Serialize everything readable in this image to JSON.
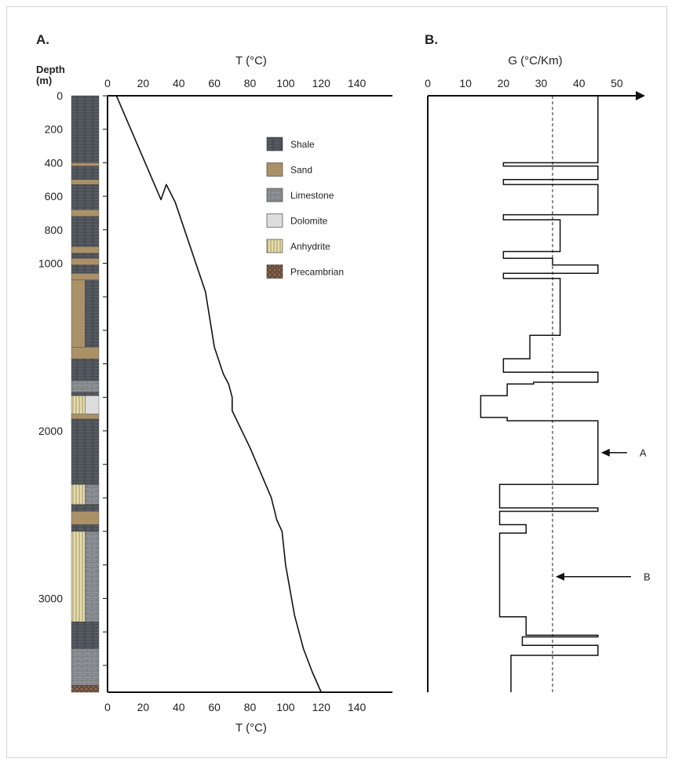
{
  "chart_data": [
    {
      "panel_label": "A.",
      "type": "line",
      "title": "",
      "xlabel_top": "T (°C)",
      "xlabel_bottom": "T (°C)",
      "ylabel": "Depth\n(m)",
      "xlim": [
        0,
        160
      ],
      "ylim": [
        3560,
        0
      ],
      "xticks": [
        0,
        20,
        40,
        60,
        80,
        100,
        120,
        140
      ],
      "yticks": [
        0,
        200,
        400,
        600,
        800,
        1000,
        2000,
        3000
      ],
      "yticks_minor": [
        1200,
        1400,
        1600,
        1800,
        2200,
        2400,
        2600,
        2800,
        3200,
        3400
      ],
      "series": [
        {
          "points": [
            [
              5,
              0
            ],
            [
              30,
              620
            ],
            [
              33,
              530
            ],
            [
              38,
              635
            ],
            [
              55,
              1170
            ],
            [
              60,
              1500
            ],
            [
              65,
              1660
            ],
            [
              68,
              1720
            ],
            [
              70,
              1800
            ],
            [
              70,
              1880
            ],
            [
              80,
              2100
            ],
            [
              92,
              2400
            ],
            [
              95,
              2530
            ],
            [
              98,
              2600
            ],
            [
              100,
              2800
            ],
            [
              105,
              3100
            ],
            [
              110,
              3300
            ],
            [
              115,
              3440
            ],
            [
              120,
              3560
            ]
          ]
        }
      ],
      "lithology_column": [
        {
          "top": 0,
          "bottom": 400,
          "units": [
            "Shale"
          ]
        },
        {
          "top": 400,
          "bottom": 420,
          "units": [
            "Sand"
          ]
        },
        {
          "top": 420,
          "bottom": 500,
          "units": [
            "Shale"
          ]
        },
        {
          "top": 500,
          "bottom": 530,
          "units": [
            "Sand"
          ]
        },
        {
          "top": 530,
          "bottom": 680,
          "units": [
            "Shale"
          ]
        },
        {
          "top": 680,
          "bottom": 720,
          "units": [
            "Sand"
          ]
        },
        {
          "top": 720,
          "bottom": 900,
          "units": [
            "Shale"
          ]
        },
        {
          "top": 900,
          "bottom": 940,
          "units": [
            "Sand"
          ]
        },
        {
          "top": 940,
          "bottom": 970,
          "units": [
            "Shale"
          ]
        },
        {
          "top": 970,
          "bottom": 1010,
          "units": [
            "Sand"
          ]
        },
        {
          "top": 1010,
          "bottom": 1060,
          "units": [
            "Shale"
          ]
        },
        {
          "top": 1060,
          "bottom": 1100,
          "units": [
            "Sand"
          ]
        },
        {
          "top": 1100,
          "bottom": 1500,
          "units": [
            "Sand",
            "Shale"
          ]
        },
        {
          "top": 1500,
          "bottom": 1570,
          "units": [
            "Sand"
          ]
        },
        {
          "top": 1570,
          "bottom": 1700,
          "units": [
            "Shale"
          ]
        },
        {
          "top": 1700,
          "bottom": 1770,
          "units": [
            "Limestone"
          ]
        },
        {
          "top": 1770,
          "bottom": 1790,
          "units": [
            "Shale"
          ]
        },
        {
          "top": 1790,
          "bottom": 1900,
          "units": [
            "Anhydrite",
            "Dolomite"
          ]
        },
        {
          "top": 1900,
          "bottom": 1930,
          "units": [
            "Sand"
          ]
        },
        {
          "top": 1930,
          "bottom": 2320,
          "units": [
            "Shale"
          ]
        },
        {
          "top": 2320,
          "bottom": 2440,
          "units": [
            "Anhydrite",
            "Limestone"
          ]
        },
        {
          "top": 2440,
          "bottom": 2480,
          "units": [
            "Shale"
          ]
        },
        {
          "top": 2480,
          "bottom": 2560,
          "units": [
            "Sand"
          ]
        },
        {
          "top": 2560,
          "bottom": 2600,
          "units": [
            "Shale"
          ]
        },
        {
          "top": 2600,
          "bottom": 3140,
          "units": [
            "Anhydrite",
            "Limestone"
          ]
        },
        {
          "top": 3140,
          "bottom": 3300,
          "units": [
            "Shale"
          ]
        },
        {
          "top": 3300,
          "bottom": 3520,
          "units": [
            "Limestone"
          ]
        },
        {
          "top": 3520,
          "bottom": 3560,
          "units": [
            "Precambrian"
          ]
        }
      ],
      "legend": {
        "placement": "upper-right",
        "entries": [
          {
            "name": "Shale",
            "color": "#4b5057"
          },
          {
            "name": "Sand",
            "color": "#ab9168"
          },
          {
            "name": "Limestone",
            "color": "#8f9297"
          },
          {
            "name": "Dolomite",
            "color": "#dcdcdc"
          },
          {
            "name": "Anhydrite",
            "color": "#e6dcae"
          },
          {
            "name": "Precambrian",
            "color": "#6b4e3a"
          }
        ]
      }
    },
    {
      "panel_label": "B.",
      "type": "line",
      "title": "",
      "xlabel_top": "G (°C/Km)",
      "xlim": [
        0,
        55
      ],
      "ylim": [
        3560,
        0
      ],
      "xticks": [
        0,
        10,
        20,
        30,
        40,
        50
      ],
      "reference_line": {
        "x": 33,
        "style": "dashed"
      },
      "series": [
        {
          "step_segments": [
            [
              0,
              400,
              45
            ],
            [
              400,
              420,
              20
            ],
            [
              420,
              500,
              45
            ],
            [
              500,
              530,
              20
            ],
            [
              530,
              710,
              45
            ],
            [
              710,
              740,
              20
            ],
            [
              740,
              930,
              35
            ],
            [
              930,
              970,
              20
            ],
            [
              970,
              1010,
              33
            ],
            [
              1010,
              1060,
              45
            ],
            [
              1060,
              1090,
              20
            ],
            [
              1090,
              1430,
              35
            ],
            [
              1430,
              1570,
              27
            ],
            [
              1570,
              1570,
              20
            ],
            [
              1570,
              1650,
              20
            ],
            [
              1650,
              1650,
              45
            ],
            [
              1650,
              1710,
              45
            ],
            [
              1710,
              1720,
              28
            ],
            [
              1720,
              1790,
              21
            ],
            [
              1790,
              1920,
              14
            ],
            [
              1920,
              1940,
              21
            ],
            [
              1940,
              2320,
              45
            ],
            [
              2320,
              2460,
              19
            ],
            [
              2460,
              2480,
              45
            ],
            [
              2480,
              2560,
              19
            ],
            [
              2560,
              2610,
              26
            ],
            [
              2610,
              3110,
              19
            ],
            [
              3110,
              3220,
              26
            ],
            [
              3220,
              3230,
              45
            ],
            [
              3230,
              3280,
              25
            ],
            [
              3280,
              3340,
              45
            ],
            [
              3340,
              3560,
              22
            ]
          ]
        }
      ],
      "annotations": [
        {
          "text": "A",
          "depth": 2130,
          "value": 45
        },
        {
          "text": "B",
          "depth": 2870,
          "value": 33
        }
      ]
    }
  ]
}
